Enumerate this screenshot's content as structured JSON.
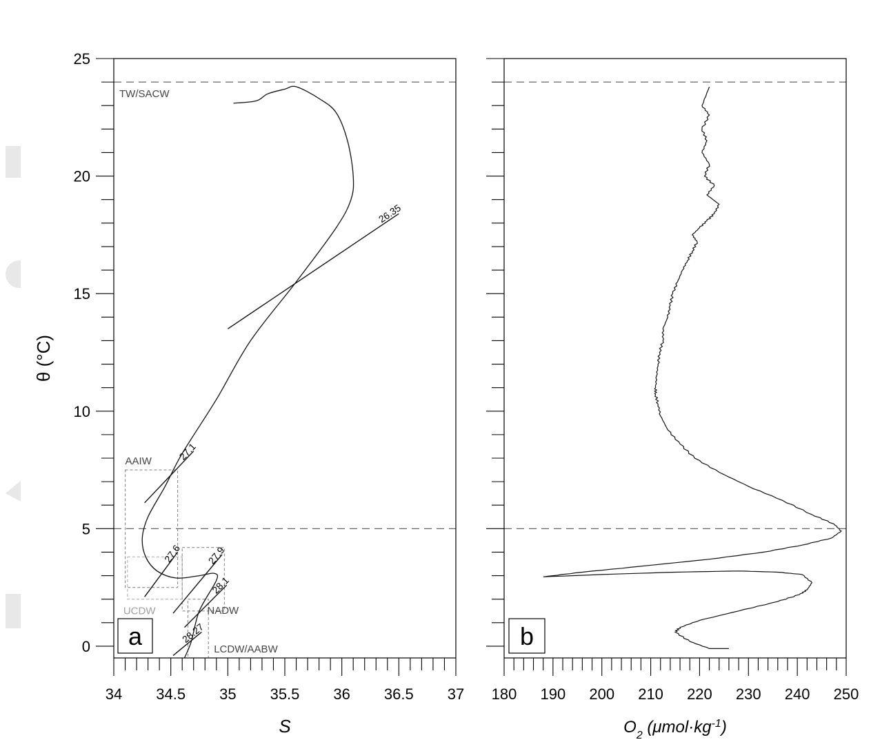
{
  "chart_data": [
    {
      "panel": "a",
      "type": "line",
      "xlabel": "S",
      "ylabel": "θ (°C)",
      "xlim": [
        34,
        37
      ],
      "ylim": [
        -0.5,
        25
      ],
      "xticks": [
        "34",
        "34.5",
        "35",
        "35.5",
        "36",
        "36.5",
        "37"
      ],
      "yticks": [
        "0",
        "5",
        "10",
        "15",
        "20",
        "25"
      ],
      "ts_curve": {
        "x": [
          35.05,
          35.25,
          35.35,
          35.5,
          35.6,
          35.8,
          35.95,
          36.05,
          36.1,
          36.08,
          35.95,
          35.6,
          35.2,
          34.9,
          34.6,
          34.45,
          34.3,
          34.25,
          34.28,
          34.38,
          34.55,
          34.75,
          34.88,
          34.9,
          34.75,
          34.68,
          34.62
        ],
        "y": [
          23.1,
          23.2,
          23.5,
          23.7,
          23.8,
          23.3,
          22.7,
          21.5,
          20.0,
          19.0,
          17.8,
          15.5,
          13.0,
          10.5,
          8.2,
          6.8,
          5.5,
          4.6,
          3.8,
          3.2,
          2.9,
          3.0,
          3.1,
          2.8,
          1.5,
          0.2,
          -0.5
        ]
      },
      "isopycnals": [
        {
          "label": "26.35",
          "x": [
            35.0,
            36.5
          ],
          "y": [
            13.5,
            18.4
          ]
        },
        {
          "label": "27.1",
          "x": [
            34.27,
            34.7
          ],
          "y": [
            6.1,
            8.3
          ]
        },
        {
          "label": "27.6",
          "x": [
            34.27,
            34.56
          ],
          "y": [
            2.1,
            4.0
          ]
        },
        {
          "label": "27.9",
          "x": [
            34.52,
            34.95
          ],
          "y": [
            1.4,
            3.9
          ]
        },
        {
          "label": "28.1",
          "x": [
            34.62,
            34.99
          ],
          "y": [
            0.8,
            2.6
          ]
        },
        {
          "label": "28.27",
          "x": [
            34.52,
            34.77
          ],
          "y": [
            -0.4,
            0.6
          ]
        }
      ],
      "boundaries": [
        {
          "label": "TW/SACW",
          "y": 24.0
        },
        {
          "label": "",
          "y": 5.0
        }
      ],
      "water_masses": [
        {
          "label": "AAIW",
          "x": [
            34.1,
            34.56
          ],
          "y": [
            2.5,
            7.5
          ],
          "color": "#888888"
        },
        {
          "label": "UCDW",
          "x": [
            34.12,
            34.6
          ],
          "y": [
            2.0,
            3.8
          ],
          "color": "#b0b0b0"
        },
        {
          "label": "NADW",
          "x": [
            34.6,
            34.97
          ],
          "y": [
            1.5,
            4.2
          ],
          "color": "#888888"
        },
        {
          "label": "LCDW/AABW",
          "x": [
            34.65,
            34.83
          ],
          "y": [
            -0.5,
            2.0
          ],
          "color": "#888888"
        }
      ],
      "panel_label": "a"
    },
    {
      "panel": "b",
      "type": "line",
      "xlabel_main": "O",
      "xlabel_sub": "2",
      "xlabel_unit": " (μmol·kg",
      "xlabel_sup": "-1",
      "xlabel_close": ")",
      "xlim": [
        180,
        250
      ],
      "ylim": [
        -0.5,
        25
      ],
      "xticks": [
        "180",
        "190",
        "200",
        "210",
        "220",
        "230",
        "240",
        "250"
      ],
      "profile": {
        "x": [
          222,
          220.5,
          222,
          220.5,
          221.5,
          220.5,
          222,
          221,
          223,
          221.5,
          224,
          223,
          221.5,
          220,
          218.5,
          219.5,
          218.5,
          217.5,
          216.5,
          215.5,
          214.5,
          214,
          213.5,
          212.5,
          212.5,
          211.8,
          211.5,
          211.2,
          211,
          211,
          211.5,
          212,
          213.5,
          216,
          219,
          224,
          230,
          237,
          243,
          247.5,
          249,
          247,
          241,
          233,
          222,
          208,
          196,
          188,
          200,
          215,
          228,
          236,
          241,
          243,
          242,
          240.5,
          236,
          228,
          220,
          216,
          215,
          218,
          222,
          226
        ],
        "y": [
          23.8,
          23.0,
          22.6,
          22.0,
          21.5,
          21.0,
          20.5,
          20.0,
          19.6,
          19.2,
          18.8,
          18.4,
          18.1,
          17.8,
          17.5,
          17.2,
          16.8,
          16.4,
          16.0,
          15.5,
          15.0,
          14.5,
          14.0,
          13.5,
          13.0,
          12.5,
          12.0,
          11.5,
          11.0,
          10.7,
          10.3,
          9.8,
          9.2,
          8.6,
          8.0,
          7.4,
          6.8,
          6.2,
          5.6,
          5.2,
          4.9,
          4.6,
          4.3,
          4.0,
          3.7,
          3.4,
          3.15,
          2.95,
          3.05,
          3.15,
          3.2,
          3.15,
          3.05,
          2.7,
          2.4,
          2.2,
          1.9,
          1.5,
          1.1,
          0.8,
          0.6,
          0.2,
          -0.1,
          -0.1
        ]
      },
      "boundaries": [
        {
          "label": "",
          "y": 24.0
        },
        {
          "label": "",
          "y": 5.0
        }
      ],
      "panel_label": "b"
    }
  ]
}
